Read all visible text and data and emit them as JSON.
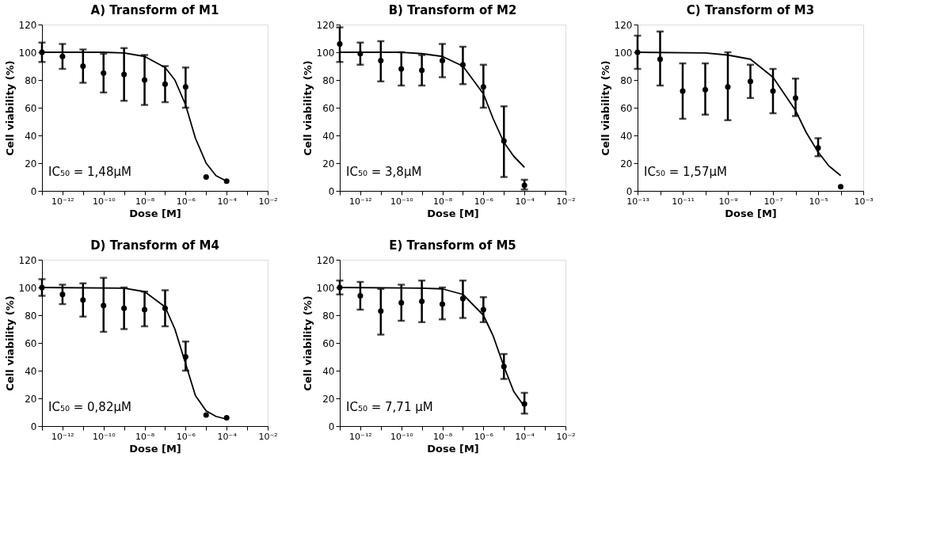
{
  "chart_data": [
    {
      "type": "scatter",
      "title": "A) Transform of M1",
      "xlabel": "Dose [M]",
      "ylabel": "Cell viability (%)",
      "log": "x",
      "grid": false,
      "xlim": [
        1e-13,
        0.01
      ],
      "ylim": [
        0,
        120
      ],
      "yticks": [
        0,
        20,
        40,
        60,
        80,
        100,
        120
      ],
      "xticks": [
        {
          "value": 1e-13,
          "label": null
        },
        {
          "value": 1e-12,
          "label": "10⁻¹²"
        },
        {
          "value": 1e-11,
          "label": null
        },
        {
          "value": 1e-10,
          "label": "10⁻¹⁰"
        },
        {
          "value": 1e-09,
          "label": null
        },
        {
          "value": 1e-08,
          "label": "10⁻⁸"
        },
        {
          "value": 1e-07,
          "label": null
        },
        {
          "value": 1e-06,
          "label": "10⁻⁶"
        },
        {
          "value": 1e-05,
          "label": null
        },
        {
          "value": 0.0001,
          "label": "10⁻⁴"
        },
        {
          "value": 0.001,
          "label": null
        },
        {
          "value": 0.01,
          "label": "10⁻²"
        }
      ],
      "annotations": [
        "IC₅₀ = 1,48μM"
      ],
      "series": [
        {
          "type": "line",
          "color": "#000000",
          "line_style": "solid",
          "x": [
            1e-13,
            1e-10,
            1e-09,
            1e-08,
            1e-07,
            3e-07,
            1e-06,
            3e-06,
            1e-05,
            3e-05,
            0.0001
          ],
          "values": [
            100,
            100,
            99.5,
            97,
            89,
            80,
            62,
            38,
            20,
            11,
            7
          ]
        },
        {
          "color": "#000000",
          "marker": "circle",
          "x": [
            1e-13,
            1e-12,
            1e-11,
            1e-10,
            1e-09,
            1e-08,
            1e-07,
            1e-06,
            1e-05,
            0.0001
          ],
          "values": [
            100,
            97,
            90,
            85,
            84,
            80,
            77,
            75,
            10,
            7
          ],
          "errors": [
            [
              93,
              107
            ],
            [
              88,
              106
            ],
            [
              78,
              102
            ],
            [
              71,
              99
            ],
            [
              65,
              103
            ],
            [
              62,
              98
            ],
            [
              64,
              90
            ],
            [
              60,
              89
            ],
            null,
            null
          ]
        }
      ]
    },
    {
      "type": "scatter",
      "title": "B) Transform of M2",
      "xlabel": "Dose [M]",
      "ylabel": "Cell viability (%)",
      "log": "x",
      "grid": false,
      "xlim": [
        1e-13,
        0.01
      ],
      "ylim": [
        0,
        120
      ],
      "yticks": [
        0,
        20,
        40,
        60,
        80,
        100,
        120
      ],
      "xticks": [
        {
          "value": 1e-13,
          "label": null
        },
        {
          "value": 1e-12,
          "label": "10⁻¹²"
        },
        {
          "value": 1e-11,
          "label": null
        },
        {
          "value": 1e-10,
          "label": "10⁻¹⁰"
        },
        {
          "value": 1e-09,
          "label": null
        },
        {
          "value": 1e-08,
          "label": "10⁻⁸"
        },
        {
          "value": 1e-07,
          "label": null
        },
        {
          "value": 1e-06,
          "label": "10⁻⁶"
        },
        {
          "value": 1e-05,
          "label": null
        },
        {
          "value": 0.0001,
          "label": "10⁻⁴"
        },
        {
          "value": 0.001,
          "label": null
        },
        {
          "value": 0.01,
          "label": "10⁻²"
        }
      ],
      "annotations": [
        "IC₅₀ = 3,8μM"
      ],
      "series": [
        {
          "type": "line",
          "color": "#000000",
          "line_style": "solid",
          "x": [
            1e-13,
            1e-10,
            1e-09,
            1e-08,
            1e-07,
            1e-06,
            3e-06,
            1e-05,
            3e-05,
            0.0001
          ],
          "values": [
            100,
            100,
            99,
            97,
            90,
            70,
            52,
            35,
            25,
            17
          ]
        },
        {
          "color": "#000000",
          "marker": "circle",
          "x": [
            1e-13,
            1e-12,
            1e-11,
            1e-10,
            1e-09,
            1e-08,
            1e-07,
            1e-06,
            1e-05,
            0.0001
          ],
          "values": [
            106,
            99,
            94,
            88,
            87,
            94,
            91,
            75,
            36,
            4
          ],
          "errors": [
            [
              93,
              118
            ],
            [
              91,
              107
            ],
            [
              79,
              108
            ],
            [
              76,
              100
            ],
            [
              76,
              98
            ],
            [
              82,
              106
            ],
            [
              77,
              104
            ],
            [
              60,
              91
            ],
            [
              10,
              61
            ],
            [
              1,
              8
            ]
          ]
        }
      ]
    },
    {
      "type": "scatter",
      "title": "C) Transform of M3",
      "xlabel": "Dose [M]",
      "ylabel": "Cell viability (%)",
      "log": "x",
      "grid": false,
      "xlim": [
        1e-13,
        0.001
      ],
      "ylim": [
        0,
        120
      ],
      "yticks": [
        0,
        20,
        40,
        60,
        80,
        100,
        120
      ],
      "xticks": [
        {
          "value": 1e-13,
          "label": "10⁻¹³"
        },
        {
          "value": 1e-12,
          "label": null
        },
        {
          "value": 1e-11,
          "label": "10⁻¹¹"
        },
        {
          "value": 1e-10,
          "label": null
        },
        {
          "value": 1e-09,
          "label": "10⁻⁹"
        },
        {
          "value": 1e-08,
          "label": null
        },
        {
          "value": 1e-07,
          "label": "10⁻⁷"
        },
        {
          "value": 1e-06,
          "label": null
        },
        {
          "value": 1e-05,
          "label": "10⁻⁵"
        },
        {
          "value": 0.0001,
          "label": null
        },
        {
          "value": 0.001,
          "label": "10⁻³"
        }
      ],
      "annotations": [
        "IC₅₀ = 1,57μM"
      ],
      "series": [
        {
          "type": "line",
          "color": "#000000",
          "line_style": "solid",
          "x": [
            1e-13,
            1e-10,
            1e-09,
            1e-08,
            1e-07,
            1e-06,
            3e-06,
            1e-05,
            3e-05,
            0.0001
          ],
          "values": [
            100,
            99.5,
            98,
            95,
            82,
            58,
            42,
            28,
            18,
            11
          ]
        },
        {
          "color": "#000000",
          "marker": "circle",
          "x": [
            1e-13,
            1e-12,
            1e-11,
            1e-10,
            1e-09,
            1e-08,
            1e-07,
            1e-06,
            1e-05,
            0.0001
          ],
          "values": [
            100,
            95,
            72,
            73,
            75,
            79,
            72,
            67,
            31,
            3
          ],
          "errors": [
            [
              88,
              112
            ],
            [
              76,
              115
            ],
            [
              52,
              92
            ],
            [
              55,
              92
            ],
            [
              51,
              100
            ],
            [
              67,
              91
            ],
            [
              56,
              88
            ],
            [
              54,
              81
            ],
            [
              25,
              38
            ],
            null
          ]
        }
      ]
    },
    {
      "type": "scatter",
      "title": "D) Transform of M4",
      "xlabel": "Dose [M]",
      "ylabel": "Cell viability (%)",
      "log": "x",
      "grid": false,
      "xlim": [
        1e-13,
        0.01
      ],
      "ylim": [
        0,
        120
      ],
      "yticks": [
        0,
        20,
        40,
        60,
        80,
        100,
        120
      ],
      "xticks": [
        {
          "value": 1e-13,
          "label": null
        },
        {
          "value": 1e-12,
          "label": "10⁻¹²"
        },
        {
          "value": 1e-11,
          "label": null
        },
        {
          "value": 1e-10,
          "label": "10⁻¹⁰"
        },
        {
          "value": 1e-09,
          "label": null
        },
        {
          "value": 1e-08,
          "label": "10⁻⁸"
        },
        {
          "value": 1e-07,
          "label": null
        },
        {
          "value": 1e-06,
          "label": "10⁻⁶"
        },
        {
          "value": 1e-05,
          "label": null
        },
        {
          "value": 0.0001,
          "label": "10⁻⁴"
        },
        {
          "value": 0.001,
          "label": null
        },
        {
          "value": 0.01,
          "label": "10⁻²"
        }
      ],
      "annotations": [
        "IC₅₀ = 0,82μM"
      ],
      "series": [
        {
          "type": "line",
          "color": "#000000",
          "line_style": "solid",
          "x": [
            1e-13,
            1e-09,
            1e-08,
            1e-07,
            3e-07,
            1e-06,
            3e-06,
            1e-05,
            3e-05,
            0.0001
          ],
          "values": [
            100,
            99.5,
            97,
            86,
            70,
            45,
            22,
            11,
            7,
            5
          ]
        },
        {
          "color": "#000000",
          "marker": "circle",
          "x": [
            1e-13,
            1e-12,
            1e-11,
            1e-10,
            1e-09,
            1e-08,
            1e-07,
            1e-06,
            1e-05,
            0.0001
          ],
          "values": [
            100,
            95,
            91,
            87,
            85,
            84,
            85,
            50,
            8,
            6
          ],
          "errors": [
            [
              94,
              106
            ],
            [
              88,
              102
            ],
            [
              79,
              103
            ],
            [
              68,
              107
            ],
            [
              70,
              100
            ],
            [
              72,
              97
            ],
            [
              72,
              98
            ],
            [
              40,
              61
            ],
            null,
            null
          ]
        }
      ]
    },
    {
      "type": "scatter",
      "title": "E) Transform of M5",
      "xlabel": "Dose [M]",
      "ylabel": "Cell viability (%)",
      "log": "x",
      "grid": false,
      "xlim": [
        1e-13,
        0.01
      ],
      "ylim": [
        0,
        120
      ],
      "yticks": [
        0,
        20,
        40,
        60,
        80,
        100,
        120
      ],
      "xticks": [
        {
          "value": 1e-13,
          "label": null
        },
        {
          "value": 1e-12,
          "label": "10⁻¹²"
        },
        {
          "value": 1e-11,
          "label": null
        },
        {
          "value": 1e-10,
          "label": "10⁻¹⁰"
        },
        {
          "value": 1e-09,
          "label": null
        },
        {
          "value": 1e-08,
          "label": "10⁻⁸"
        },
        {
          "value": 1e-07,
          "label": null
        },
        {
          "value": 1e-06,
          "label": "10⁻⁶"
        },
        {
          "value": 1e-05,
          "label": null
        },
        {
          "value": 0.0001,
          "label": "10⁻⁴"
        },
        {
          "value": 0.001,
          "label": null
        },
        {
          "value": 0.01,
          "label": "10⁻²"
        }
      ],
      "annotations": [
        "IC₅₀ = 7,71 μM"
      ],
      "series": [
        {
          "type": "line",
          "color": "#000000",
          "line_style": "solid",
          "x": [
            1e-13,
            1e-09,
            1e-08,
            1e-07,
            1e-06,
            3e-06,
            1e-05,
            3e-05,
            0.0001
          ],
          "values": [
            100,
            99.5,
            99,
            95,
            80,
            65,
            43,
            25,
            14
          ]
        },
        {
          "color": "#000000",
          "marker": "circle",
          "x": [
            1e-13,
            1e-12,
            1e-11,
            1e-10,
            1e-09,
            1e-08,
            1e-07,
            1e-06,
            1e-05,
            0.0001
          ],
          "values": [
            100,
            94,
            83,
            89,
            90,
            88,
            92,
            84,
            43,
            16
          ],
          "errors": [
            [
              95,
              105
            ],
            [
              84,
              104
            ],
            [
              66,
              99
            ],
            [
              76,
              102
            ],
            [
              75,
              105
            ],
            [
              77,
              100
            ],
            [
              78,
              105
            ],
            [
              75,
              93
            ],
            [
              34,
              52
            ],
            [
              9,
              24
            ]
          ]
        }
      ]
    }
  ]
}
